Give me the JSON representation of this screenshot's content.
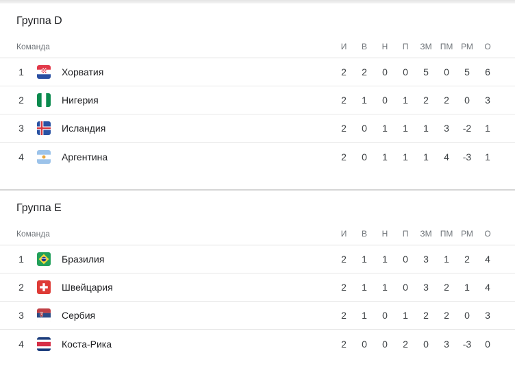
{
  "columns": {
    "team_label": "Команда",
    "stats": [
      "И",
      "В",
      "Н",
      "П",
      "ЗМ",
      "ПМ",
      "РМ",
      "О"
    ]
  },
  "groups": [
    {
      "title": "Группа D",
      "rows": [
        {
          "rank": "1",
          "flag": "croatia",
          "team": "Хорватия",
          "stats": [
            "2",
            "2",
            "0",
            "0",
            "5",
            "0",
            "5",
            "6"
          ]
        },
        {
          "rank": "2",
          "flag": "nigeria",
          "team": "Нигерия",
          "stats": [
            "2",
            "1",
            "0",
            "1",
            "2",
            "2",
            "0",
            "3"
          ]
        },
        {
          "rank": "3",
          "flag": "iceland",
          "team": "Исландия",
          "stats": [
            "2",
            "0",
            "1",
            "1",
            "1",
            "3",
            "-2",
            "1"
          ]
        },
        {
          "rank": "4",
          "flag": "argentina",
          "team": "Аргентина",
          "stats": [
            "2",
            "0",
            "1",
            "1",
            "1",
            "4",
            "-3",
            "1"
          ]
        }
      ]
    },
    {
      "title": "Группа E",
      "rows": [
        {
          "rank": "1",
          "flag": "brazil",
          "team": "Бразилия",
          "stats": [
            "2",
            "1",
            "1",
            "0",
            "3",
            "1",
            "2",
            "4"
          ]
        },
        {
          "rank": "2",
          "flag": "switzerland",
          "team": "Швейцария",
          "stats": [
            "2",
            "1",
            "1",
            "0",
            "3",
            "2",
            "1",
            "4"
          ]
        },
        {
          "rank": "3",
          "flag": "serbia",
          "team": "Сербия",
          "stats": [
            "2",
            "1",
            "0",
            "1",
            "2",
            "2",
            "0",
            "3"
          ]
        },
        {
          "rank": "4",
          "flag": "costa_rica",
          "team": "Коста-Рика",
          "stats": [
            "2",
            "0",
            "0",
            "2",
            "0",
            "3",
            "-3",
            "0"
          ]
        }
      ]
    }
  ],
  "colors": {
    "title_text": "#202124",
    "header_text": "#70757a",
    "body_text": "#3c4043",
    "row_divider": "#e7e7e7",
    "section_divider": "#d5d5d5"
  }
}
